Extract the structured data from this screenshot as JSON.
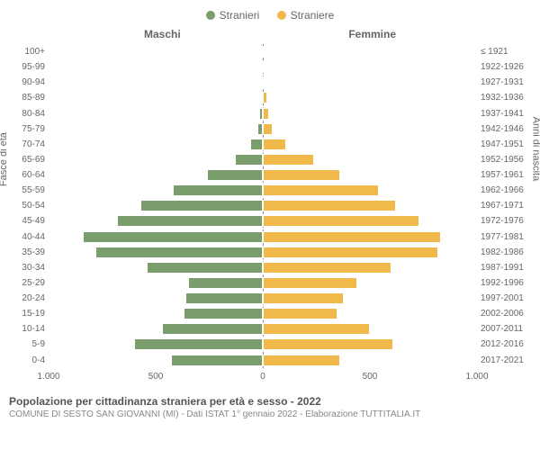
{
  "legend": {
    "male_label": "Stranieri",
    "female_label": "Straniere",
    "male_color": "#7a9e6b",
    "female_color": "#f0b94a"
  },
  "chart": {
    "type": "population-pyramid",
    "left_title": "Maschi",
    "right_title": "Femmine",
    "y_left_label": "Fasce di età",
    "y_right_label": "Anni di nascita",
    "x_max": 1000,
    "x_ticks": [
      -1000,
      -500,
      0,
      500,
      1000
    ],
    "x_tick_labels": [
      "1.000",
      "500",
      "0",
      "500",
      "1.000"
    ],
    "background_color": "#ffffff",
    "bar_border_color": "#ffffff",
    "text_color": "#666666",
    "rows": [
      {
        "age": "100+",
        "birth": "≤ 1921",
        "m": 0,
        "f": 0
      },
      {
        "age": "95-99",
        "birth": "1922-1926",
        "m": 0,
        "f": 0
      },
      {
        "age": "90-94",
        "birth": "1927-1931",
        "m": 0,
        "f": 5
      },
      {
        "age": "85-89",
        "birth": "1932-1936",
        "m": 5,
        "f": 20
      },
      {
        "age": "80-84",
        "birth": "1937-1941",
        "m": 15,
        "f": 30
      },
      {
        "age": "75-79",
        "birth": "1942-1946",
        "m": 25,
        "f": 45
      },
      {
        "age": "70-74",
        "birth": "1947-1951",
        "m": 60,
        "f": 110
      },
      {
        "age": "65-69",
        "birth": "1952-1956",
        "m": 130,
        "f": 240
      },
      {
        "age": "60-64",
        "birth": "1957-1961",
        "m": 260,
        "f": 360
      },
      {
        "age": "55-59",
        "birth": "1962-1966",
        "m": 420,
        "f": 540
      },
      {
        "age": "50-54",
        "birth": "1967-1971",
        "m": 570,
        "f": 620
      },
      {
        "age": "45-49",
        "birth": "1972-1976",
        "m": 680,
        "f": 730
      },
      {
        "age": "40-44",
        "birth": "1977-1981",
        "m": 840,
        "f": 830
      },
      {
        "age": "35-39",
        "birth": "1982-1986",
        "m": 780,
        "f": 820
      },
      {
        "age": "30-34",
        "birth": "1987-1991",
        "m": 540,
        "f": 600
      },
      {
        "age": "25-29",
        "birth": "1992-1996",
        "m": 350,
        "f": 440
      },
      {
        "age": "20-24",
        "birth": "1997-2001",
        "m": 360,
        "f": 380
      },
      {
        "age": "15-19",
        "birth": "2002-2006",
        "m": 370,
        "f": 350
      },
      {
        "age": "10-14",
        "birth": "2007-2011",
        "m": 470,
        "f": 500
      },
      {
        "age": "5-9",
        "birth": "2012-2016",
        "m": 600,
        "f": 610
      },
      {
        "age": "0-4",
        "birth": "2017-2021",
        "m": 430,
        "f": 360
      }
    ]
  },
  "footer": {
    "title": "Popolazione per cittadinanza straniera per età e sesso - 2022",
    "subtitle": "COMUNE DI SESTO SAN GIOVANNI (MI) - Dati ISTAT 1° gennaio 2022 - Elaborazione TUTTITALIA.IT"
  }
}
